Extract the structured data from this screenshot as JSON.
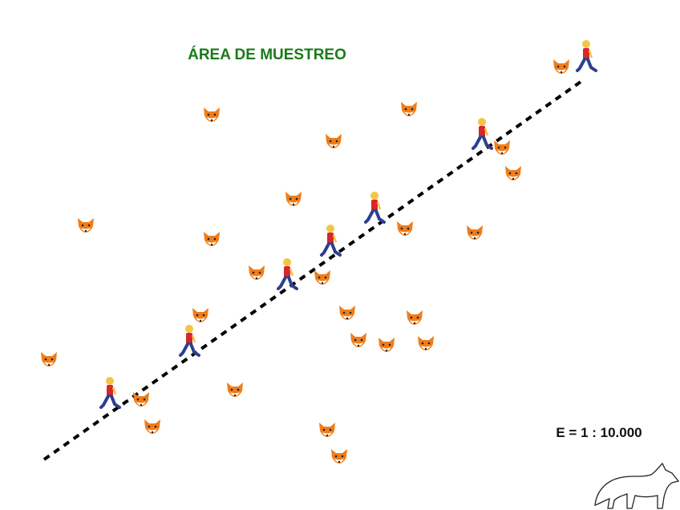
{
  "title": "ÁREA DE MUESTREO",
  "scale": "E = 1 : 10.000"
}
